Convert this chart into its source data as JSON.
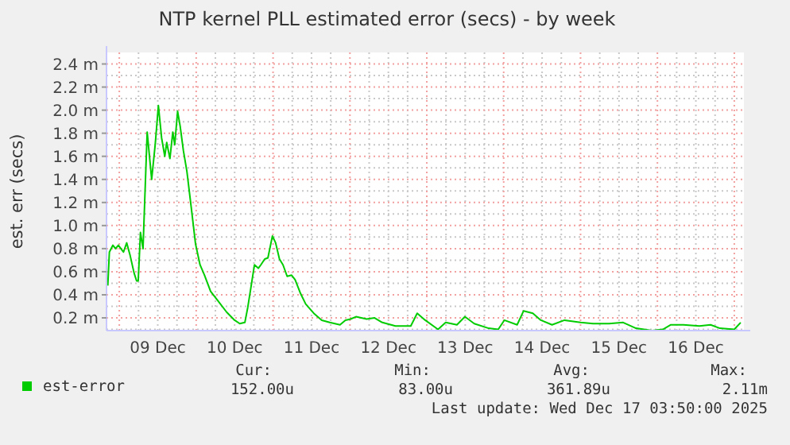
{
  "chart_data": {
    "type": "line",
    "title": "NTP kernel PLL estimated error (secs) - by week",
    "ylabel": "est. err (secs)",
    "xlim": [
      "2025-12-08T20:00",
      "2025-12-17T03:00"
    ],
    "ylim": [
      0.09,
      2.5
    ],
    "xticks": [
      {
        "value": "2025-12-09T12:00",
        "label": "09 Dec"
      },
      {
        "value": "2025-12-10T12:00",
        "label": "10 Dec"
      },
      {
        "value": "2025-12-11T12:00",
        "label": "11 Dec"
      },
      {
        "value": "2025-12-12T12:00",
        "label": "12 Dec"
      },
      {
        "value": "2025-12-13T12:00",
        "label": "13 Dec"
      },
      {
        "value": "2025-12-14T12:00",
        "label": "14 Dec"
      },
      {
        "value": "2025-12-15T12:00",
        "label": "15 Dec"
      },
      {
        "value": "2025-12-16T12:00",
        "label": "16 Dec"
      }
    ],
    "yticks": [
      {
        "value": 0.2,
        "label": "0.2 m"
      },
      {
        "value": 0.4,
        "label": "0.4 m"
      },
      {
        "value": 0.6,
        "label": "0.6 m"
      },
      {
        "value": 0.8,
        "label": "0.8 m"
      },
      {
        "value": 1.0,
        "label": "1.0 m"
      },
      {
        "value": 1.2,
        "label": "1.2 m"
      },
      {
        "value": 1.4,
        "label": "1.4 m"
      },
      {
        "value": 1.6,
        "label": "1.6 m"
      },
      {
        "value": 1.8,
        "label": "1.8 m"
      },
      {
        "value": 2.0,
        "label": "2.0 m"
      },
      {
        "value": 2.2,
        "label": "2.2 m"
      },
      {
        "value": 2.4,
        "label": "2.4 m"
      }
    ],
    "grid": true,
    "legend": "bottom",
    "marker": "none",
    "line_style": "solid",
    "annotations": [
      "Cur:",
      "Min:",
      "Avg:",
      "Max:",
      "152.00u",
      "83.00u",
      "361.89u",
      "2.11m",
      "Last update: Wed Dec 17 03:50:00 2025"
    ],
    "series": [
      {
        "name": "est-error",
        "color": "#00cc00",
        "x": [
          "2025-12-08T20:24",
          "2025-12-08T20:54",
          "2025-12-08T22:00",
          "2025-12-08T22:48",
          "2025-12-08T23:42",
          "2025-12-09T00:30",
          "2025-12-09T01:18",
          "2025-12-09T02:18",
          "2025-12-09T03:18",
          "2025-12-09T04:36",
          "2025-12-09T05:24",
          "2025-12-09T05:54",
          "2025-12-09T06:36",
          "2025-12-09T07:24",
          "2025-12-09T08:42",
          "2025-12-09T10:06",
          "2025-12-09T11:12",
          "2025-12-09T12:12",
          "2025-12-09T13:12",
          "2025-12-09T14:12",
          "2025-12-09T14:48",
          "2025-12-09T15:48",
          "2025-12-09T16:42",
          "2025-12-09T17:18",
          "2025-12-09T18:12",
          "2025-12-09T19:00",
          "2025-12-09T20:00",
          "2025-12-09T21:06",
          "2025-12-09T22:24",
          "2025-12-09T23:48",
          "2025-12-10T01:12",
          "2025-12-10T02:36",
          "2025-12-10T04:30",
          "2025-12-10T07:00",
          "2025-12-10T09:30",
          "2025-12-10T12:00",
          "2025-12-10T13:36",
          "2025-12-10T15:12",
          "2025-12-10T16:06",
          "2025-12-10T16:54",
          "2025-12-10T18:12",
          "2025-12-10T19:24",
          "2025-12-10T20:12",
          "2025-12-10T21:24",
          "2025-12-10T22:24",
          "2025-12-10T23:48",
          "2025-12-11T00:48",
          "2025-12-11T02:00",
          "2025-12-11T03:06",
          "2025-12-11T04:24",
          "2025-12-11T05:48",
          "2025-12-11T06:54",
          "2025-12-11T08:36",
          "2025-12-11T10:12",
          "2025-12-11T12:42",
          "2025-12-11T15:12",
          "2025-12-11T17:42",
          "2025-12-11T20:54",
          "2025-12-11T22:36",
          "2025-12-12T00:12",
          "2025-12-12T01:54",
          "2025-12-12T05:12",
          "2025-12-12T07:42",
          "2025-12-12T10:06",
          "2025-12-12T14:12",
          "2025-12-12T16:36",
          "2025-12-12T19:00",
          "2025-12-12T21:00",
          "2025-12-12T23:30",
          "2025-12-13T03:30",
          "2025-12-13T05:54",
          "2025-12-13T09:24",
          "2025-12-13T11:54",
          "2025-12-13T14:48",
          "2025-12-13T19:18",
          "2025-12-13T22:18",
          "2025-12-14T00:12",
          "2025-12-14T04:12",
          "2025-12-14T06:12",
          "2025-12-14T09:06",
          "2025-12-14T11:36",
          "2025-12-14T15:06",
          "2025-12-14T19:00",
          "2025-12-15T00:00",
          "2025-12-15T03:54",
          "2025-12-15T08:54",
          "2025-12-15T13:18",
          "2025-12-15T17:18",
          "2025-12-15T22:18",
          "2025-12-16T01:42",
          "2025-12-16T04:12",
          "2025-12-16T08:06",
          "2025-12-16T13:06",
          "2025-12-16T16:36",
          "2025-12-16T19:30",
          "2025-12-17T00:00",
          "2025-12-17T02:00"
        ],
        "values": [
          0.48,
          0.77,
          0.83,
          0.8,
          0.83,
          0.8,
          0.77,
          0.85,
          0.75,
          0.59,
          0.52,
          0.52,
          0.94,
          0.8,
          1.81,
          1.4,
          1.7,
          2.04,
          1.76,
          1.6,
          1.72,
          1.58,
          1.81,
          1.7,
          1.99,
          1.86,
          1.65,
          1.47,
          1.17,
          0.84,
          0.66,
          0.57,
          0.43,
          0.34,
          0.25,
          0.18,
          0.15,
          0.16,
          0.29,
          0.43,
          0.66,
          0.63,
          0.66,
          0.71,
          0.72,
          0.91,
          0.85,
          0.71,
          0.66,
          0.56,
          0.57,
          0.53,
          0.41,
          0.32,
          0.24,
          0.18,
          0.16,
          0.14,
          0.18,
          0.19,
          0.21,
          0.19,
          0.2,
          0.16,
          0.13,
          0.13,
          0.13,
          0.24,
          0.18,
          0.1,
          0.16,
          0.14,
          0.21,
          0.15,
          0.11,
          0.1,
          0.18,
          0.14,
          0.26,
          0.24,
          0.18,
          0.14,
          0.18,
          0.16,
          0.15,
          0.15,
          0.16,
          0.11,
          0.09,
          0.1,
          0.14,
          0.14,
          0.13,
          0.14,
          0.11,
          0.1,
          0.16
        ]
      }
    ]
  }
}
